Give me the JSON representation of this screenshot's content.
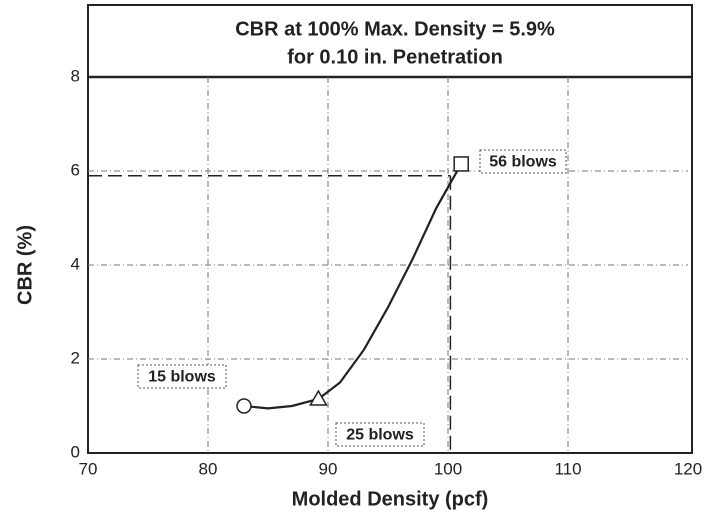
{
  "chart_data": {
    "type": "line",
    "title": [
      "CBR at 100% Max. Density = 5.9%",
      "for 0.10 in. Penetration"
    ],
    "x_label": "Molded Density (pcf)",
    "y_label": "CBR (%)",
    "series": [
      {
        "x": [
          83,
          89.2,
          101.1
        ],
        "values": [
          1.0,
          1.15,
          6.15
        ],
        "markers": [
          "circle",
          "triangle",
          "square"
        ],
        "color": "#222222"
      }
    ],
    "curve": {
      "x": [
        83,
        85,
        87,
        89.2,
        91,
        93,
        95,
        97,
        99,
        101.1
      ],
      "values": [
        1.0,
        0.95,
        1.0,
        1.15,
        1.5,
        2.2,
        3.1,
        4.1,
        5.2,
        6.15
      ]
    },
    "reference": {
      "x": 100.2,
      "y": 5.9
    },
    "annotations": [
      "56 blows",
      "15 blows",
      "25 blows"
    ],
    "xlim": [
      70,
      120
    ],
    "xticks": [
      70,
      80,
      90,
      100,
      110,
      120
    ],
    "ylim": [
      0,
      8
    ],
    "yticks": [
      0,
      2,
      4,
      6,
      8
    ],
    "grid": true
  }
}
